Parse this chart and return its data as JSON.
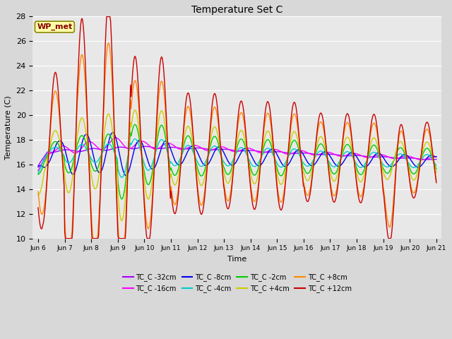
{
  "title": "Temperature Set C",
  "xlabel": "Time",
  "ylabel": "Temperature (C)",
  "ylim": [
    10,
    28
  ],
  "background_color": "#e8e8e8",
  "fig_facecolor": "#d8d8d8",
  "wp_met_label": "WP_met",
  "wp_met_color": "#880000",
  "wp_met_bg": "#ffffaa",
  "wp_met_edge": "#888800",
  "xtick_labels": [
    "Jun 6",
    "Jun 7",
    "Jun 8",
    "Jun 9",
    "Jun 10",
    "Jun 11",
    "Jun 12",
    "Jun 13",
    "Jun 14",
    "Jun 15",
    "Jun 16",
    "Jun 17",
    "Jun 18",
    "Jun 19",
    "Jun 20",
    "Jun 21"
  ],
  "series": [
    {
      "label": "TC_C -32cm",
      "color": "#aa00ff",
      "lw": 1.0
    },
    {
      "label": "TC_C -16cm",
      "color": "#ff00ff",
      "lw": 1.0
    },
    {
      "label": "TC_C -8cm",
      "color": "#0000ee",
      "lw": 1.0
    },
    {
      "label": "TC_C -4cm",
      "color": "#00cccc",
      "lw": 1.0
    },
    {
      "label": "TC_C -2cm",
      "color": "#00cc00",
      "lw": 1.0
    },
    {
      "label": "TC_C +4cm",
      "color": "#cccc00",
      "lw": 1.0
    },
    {
      "label": "TC_C +8cm",
      "color": "#ff8800",
      "lw": 1.0
    },
    {
      "label": "TC_C +12cm",
      "color": "#cc0000",
      "lw": 1.0
    }
  ]
}
